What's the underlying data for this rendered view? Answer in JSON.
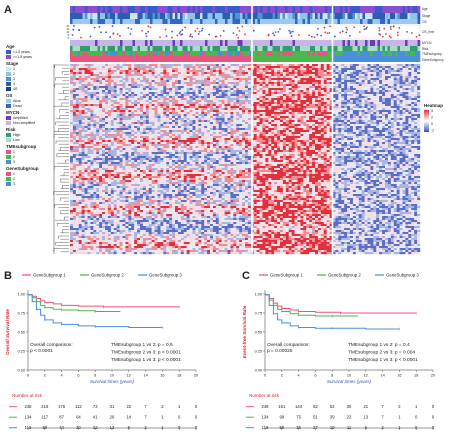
{
  "panelA": {
    "label": "A",
    "tracks": [
      "Age",
      "Stage",
      "OS",
      "OS_time",
      "MYCN",
      "Risk",
      "TMEsubgroup",
      "GeneSubgroup"
    ],
    "legend": [
      {
        "title": "Age",
        "items": [
          {
            "label": "<1.5 years",
            "color": "#3a5bc7"
          },
          {
            "label": ">=1.5 years",
            "color": "#8a4fd1"
          }
        ]
      },
      {
        "title": "Stage",
        "items": [
          {
            "label": "1",
            "color": "#cde6f5"
          },
          {
            "label": "2",
            "color": "#8ec3ea"
          },
          {
            "label": "3",
            "color": "#4f93d6"
          },
          {
            "label": "4",
            "color": "#2a5fb0"
          },
          {
            "label": "4S",
            "color": "#1c3f86"
          }
        ]
      },
      {
        "title": "OS",
        "items": [
          {
            "label": "Alive",
            "color": "#9ec9ee"
          },
          {
            "label": "Dead",
            "color": "#2f68c5"
          }
        ]
      },
      {
        "title": "MYCN",
        "items": [
          {
            "label": "Amplified",
            "color": "#6a3db8"
          },
          {
            "label": "Non-amplified",
            "color": "#c7b5ea"
          }
        ]
      },
      {
        "title": "Risk",
        "items": [
          {
            "label": "High",
            "color": "#2e9e6e"
          },
          {
            "label": "Low",
            "color": "#a9dcc6"
          }
        ]
      },
      {
        "title": "TMEsubgroup",
        "items": [
          {
            "label": "1",
            "color": "#e9557f"
          },
          {
            "label": "2",
            "color": "#48b94a"
          },
          {
            "label": "3",
            "color": "#4b8fd9"
          }
        ]
      },
      {
        "title": "GeneSubgroup",
        "items": [
          {
            "label": "1",
            "color": "#e9557f"
          },
          {
            "label": "2",
            "color": "#48b94a"
          },
          {
            "label": "3",
            "color": "#4b8fd9"
          }
        ]
      }
    ],
    "heatmap": {
      "title": "Heatmap",
      "ticks": [
        "4",
        "2",
        "0",
        "-2"
      ],
      "colors": [
        "#e0303c",
        "#ffffff",
        "#3a52b8"
      ]
    },
    "os_scale": [
      "20",
      "15",
      "10",
      "5",
      "0"
    ]
  },
  "panelB": {
    "label": "B",
    "legend": [
      "GeneSubgroup 1",
      "GeneSubgroup 2",
      "GeneSubgroup 3"
    ],
    "ylabel": "Overall Survival Rate",
    "xlabel": "Survival times (years)",
    "yticks": [
      "1.00",
      "0.75",
      "0.50",
      "0.25",
      "0.00"
    ],
    "xticks": [
      "0",
      "2",
      "4",
      "6",
      "8",
      "10",
      "12",
      "14",
      "16",
      "18",
      "20"
    ],
    "stats": [
      "Overall comparison:",
      "p < 0.0001"
    ],
    "pairwise": [
      "TMEsubgroup 1 vs 2: p = 0.5",
      "TMEsubgroup 2 vs 3: p < 0.0001",
      "TMEsubgroup 1 vs 3: p < 0.0001"
    ],
    "risk_title": "Number at risk",
    "risk": [
      [
        "248",
        "219",
        "176",
        "112",
        "72",
        "31",
        "22",
        "7",
        "2",
        "1",
        "0"
      ],
      [
        "134",
        "117",
        "87",
        "64",
        "41",
        "26",
        "14",
        "7",
        "1",
        "0",
        "0"
      ],
      [
        "118",
        "80",
        "44",
        "30",
        "22",
        "13",
        "9",
        "2",
        "1",
        "0",
        "0"
      ]
    ]
  },
  "panelC": {
    "label": "C",
    "legend": [
      "GeneSubgroup 1",
      "GeneSubgroup 2",
      "GeneSubgroup 3"
    ],
    "ylabel": "Event-free Survival Rate",
    "xlabel": "Survival times (years)",
    "yticks": [
      "1.00",
      "0.75",
      "0.50",
      "0.25",
      "0.00"
    ],
    "xticks": [
      "0",
      "2",
      "4",
      "6",
      "8",
      "10",
      "12",
      "14",
      "16",
      "18",
      "20"
    ],
    "stats": [
      "Overall comparison:",
      "p = 0.00025"
    ],
    "pairwise": [
      "TMEsubgroup 1 vs 2: p = 0.4",
      "TMEsubgroup 2 vs 3: p = 0.004",
      "TMEsubgroup 1 vs 3: p < 0.0001"
    ],
    "risk_title": "Number at risk",
    "risk": [
      [
        "248",
        "161",
        "144",
        "62",
        "52",
        "30",
        "21",
        "7",
        "2",
        "1",
        "0"
      ],
      [
        "134",
        "99",
        "75",
        "51",
        "39",
        "23",
        "13",
        "7",
        "1",
        "0",
        "0"
      ],
      [
        "118",
        "59",
        "36",
        "27",
        "19",
        "11",
        "9",
        "2",
        "1",
        "0",
        "0"
      ]
    ]
  },
  "colors": {
    "g1": "#e9557f",
    "g2": "#48b94a",
    "g3": "#4b8fd9",
    "riskTitle": "#d9262b"
  }
}
